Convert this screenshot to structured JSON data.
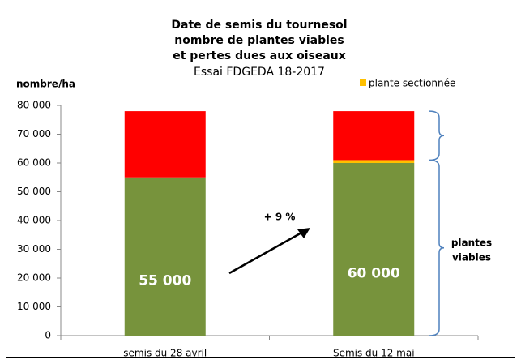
{
  "chart_data": {
    "type": "stacked_bar",
    "title": [
      "Date de semis du tournesol",
      "nombre de plantes viables",
      "et pertes dues aux oiseaux"
    ],
    "subtitle": "Essai FDGEDA 18-2017",
    "y_label": "nombre/ha",
    "categories": [
      "semis du 28 avril",
      "Semis du 12 mai"
    ],
    "series": [
      {
        "color": "#77933c",
        "values": [
          55000,
          60000
        ],
        "value_labels": [
          "55 000",
          "60 000"
        ]
      },
      {
        "name": "plante sectionnée",
        "color": "#ffc000",
        "values": [
          0,
          1000
        ]
      },
      {
        "color": "#ff0000",
        "values": [
          23000,
          17000
        ]
      }
    ],
    "ylim": [
      0,
      80000
    ],
    "yticks": [
      0,
      {
        "value": 10000,
        "label": "10 000"
      },
      {
        "value": 20000,
        "label": "20 000"
      },
      {
        "value": 30000,
        "label": "30 000"
      },
      {
        "value": 40000,
        "label": "40 000"
      },
      {
        "value": 50000,
        "label": "50 000"
      },
      {
        "value": 60000,
        "label": "60 000"
      },
      {
        "value": 70000,
        "label": "70 000"
      },
      {
        "value": 80000,
        "label": "80 000"
      }
    ],
    "annotations": {
      "arrow": "+ 9 %",
      "brace": [
        "plantes",
        "viables"
      ]
    },
    "legend": "top-right",
    "grid": false
  }
}
